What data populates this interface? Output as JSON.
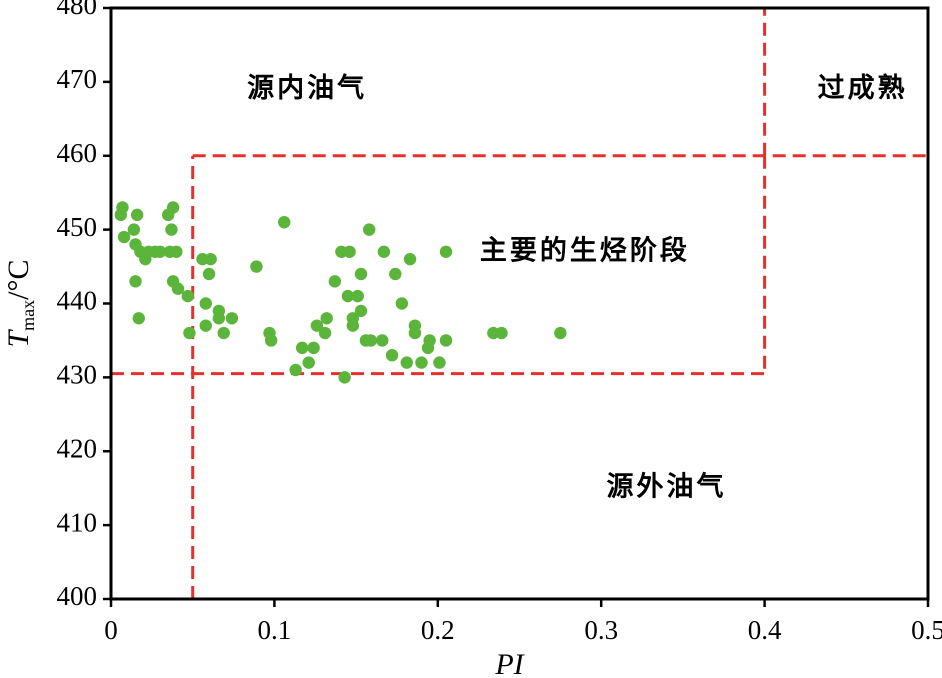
{
  "chart_data": {
    "type": "scatter",
    "xlabel": "PI",
    "ylabel": {
      "main": "T",
      "sub": "max",
      "unit": "/°C"
    },
    "xlim": [
      0,
      0.5
    ],
    "ylim": [
      400,
      480
    ],
    "xticks": [
      "0",
      "0.1",
      "0.2",
      "0.3",
      "0.4",
      "0.5"
    ],
    "yticks": [
      "400",
      "410",
      "420",
      "430",
      "440",
      "450",
      "460",
      "470",
      "480"
    ],
    "grid": false,
    "point_color": "#5bb53b",
    "boundary_color": "#e8302b",
    "regions": [
      {
        "label": "源内油气",
        "x": 0.12,
        "y": 469
      },
      {
        "label": "过成熟",
        "x": 0.46,
        "y": 469
      },
      {
        "label": "主要的生烃阶段",
        "x": 0.29,
        "y": 447
      },
      {
        "label": "源外油气",
        "x": 0.34,
        "y": 415
      }
    ],
    "boundaries": [
      {
        "from": [
          0.05,
          400
        ],
        "to": [
          0.05,
          460
        ]
      },
      {
        "from": [
          0.05,
          460
        ],
        "to": [
          0.5,
          460
        ]
      },
      {
        "from": [
          0.4,
          460
        ],
        "to": [
          0.4,
          480
        ]
      },
      {
        "from": [
          0.4,
          460
        ],
        "to": [
          0.4,
          430.5
        ]
      },
      {
        "from": [
          0,
          430.5
        ],
        "to": [
          0.4,
          430.5
        ]
      }
    ],
    "points": [
      [
        0.006,
        452
      ],
      [
        0.007,
        453
      ],
      [
        0.008,
        449
      ],
      [
        0.016,
        452
      ],
      [
        0.038,
        453
      ],
      [
        0.014,
        450
      ],
      [
        0.018,
        447
      ],
      [
        0.015,
        448
      ],
      [
        0.021,
        446
      ],
      [
        0.023,
        447
      ],
      [
        0.027,
        447
      ],
      [
        0.03,
        447
      ],
      [
        0.036,
        447
      ],
      [
        0.04,
        447
      ],
      [
        0.035,
        452
      ],
      [
        0.037,
        450
      ],
      [
        0.015,
        443
      ],
      [
        0.038,
        443
      ],
      [
        0.041,
        442
      ],
      [
        0.047,
        441
      ],
      [
        0.017,
        438
      ],
      [
        0.048,
        436
      ],
      [
        0.056,
        446
      ],
      [
        0.061,
        446
      ],
      [
        0.06,
        444
      ],
      [
        0.058,
        440
      ],
      [
        0.066,
        439
      ],
      [
        0.066,
        438
      ],
      [
        0.074,
        438
      ],
      [
        0.058,
        437
      ],
      [
        0.069,
        436
      ],
      [
        0.089,
        445
      ],
      [
        0.097,
        436
      ],
      [
        0.098,
        435
      ],
      [
        0.106,
        451
      ],
      [
        0.113,
        431
      ],
      [
        0.117,
        434
      ],
      [
        0.121,
        432
      ],
      [
        0.124,
        434
      ],
      [
        0.126,
        437
      ],
      [
        0.131,
        436
      ],
      [
        0.132,
        438
      ],
      [
        0.137,
        443
      ],
      [
        0.141,
        447
      ],
      [
        0.146,
        447
      ],
      [
        0.145,
        441
      ],
      [
        0.148,
        438
      ],
      [
        0.148,
        437
      ],
      [
        0.143,
        430
      ],
      [
        0.151,
        441
      ],
      [
        0.153,
        444
      ],
      [
        0.153,
        439
      ],
      [
        0.156,
        435
      ],
      [
        0.158,
        450
      ],
      [
        0.159,
        435
      ],
      [
        0.166,
        435
      ],
      [
        0.167,
        447
      ],
      [
        0.172,
        433
      ],
      [
        0.174,
        444
      ],
      [
        0.178,
        440
      ],
      [
        0.181,
        432
      ],
      [
        0.183,
        446
      ],
      [
        0.186,
        437
      ],
      [
        0.186,
        436
      ],
      [
        0.19,
        432
      ],
      [
        0.194,
        434
      ],
      [
        0.195,
        435
      ],
      [
        0.201,
        432
      ],
      [
        0.205,
        435
      ],
      [
        0.205,
        447
      ],
      [
        0.234,
        436
      ],
      [
        0.239,
        436
      ],
      [
        0.275,
        436
      ]
    ]
  }
}
